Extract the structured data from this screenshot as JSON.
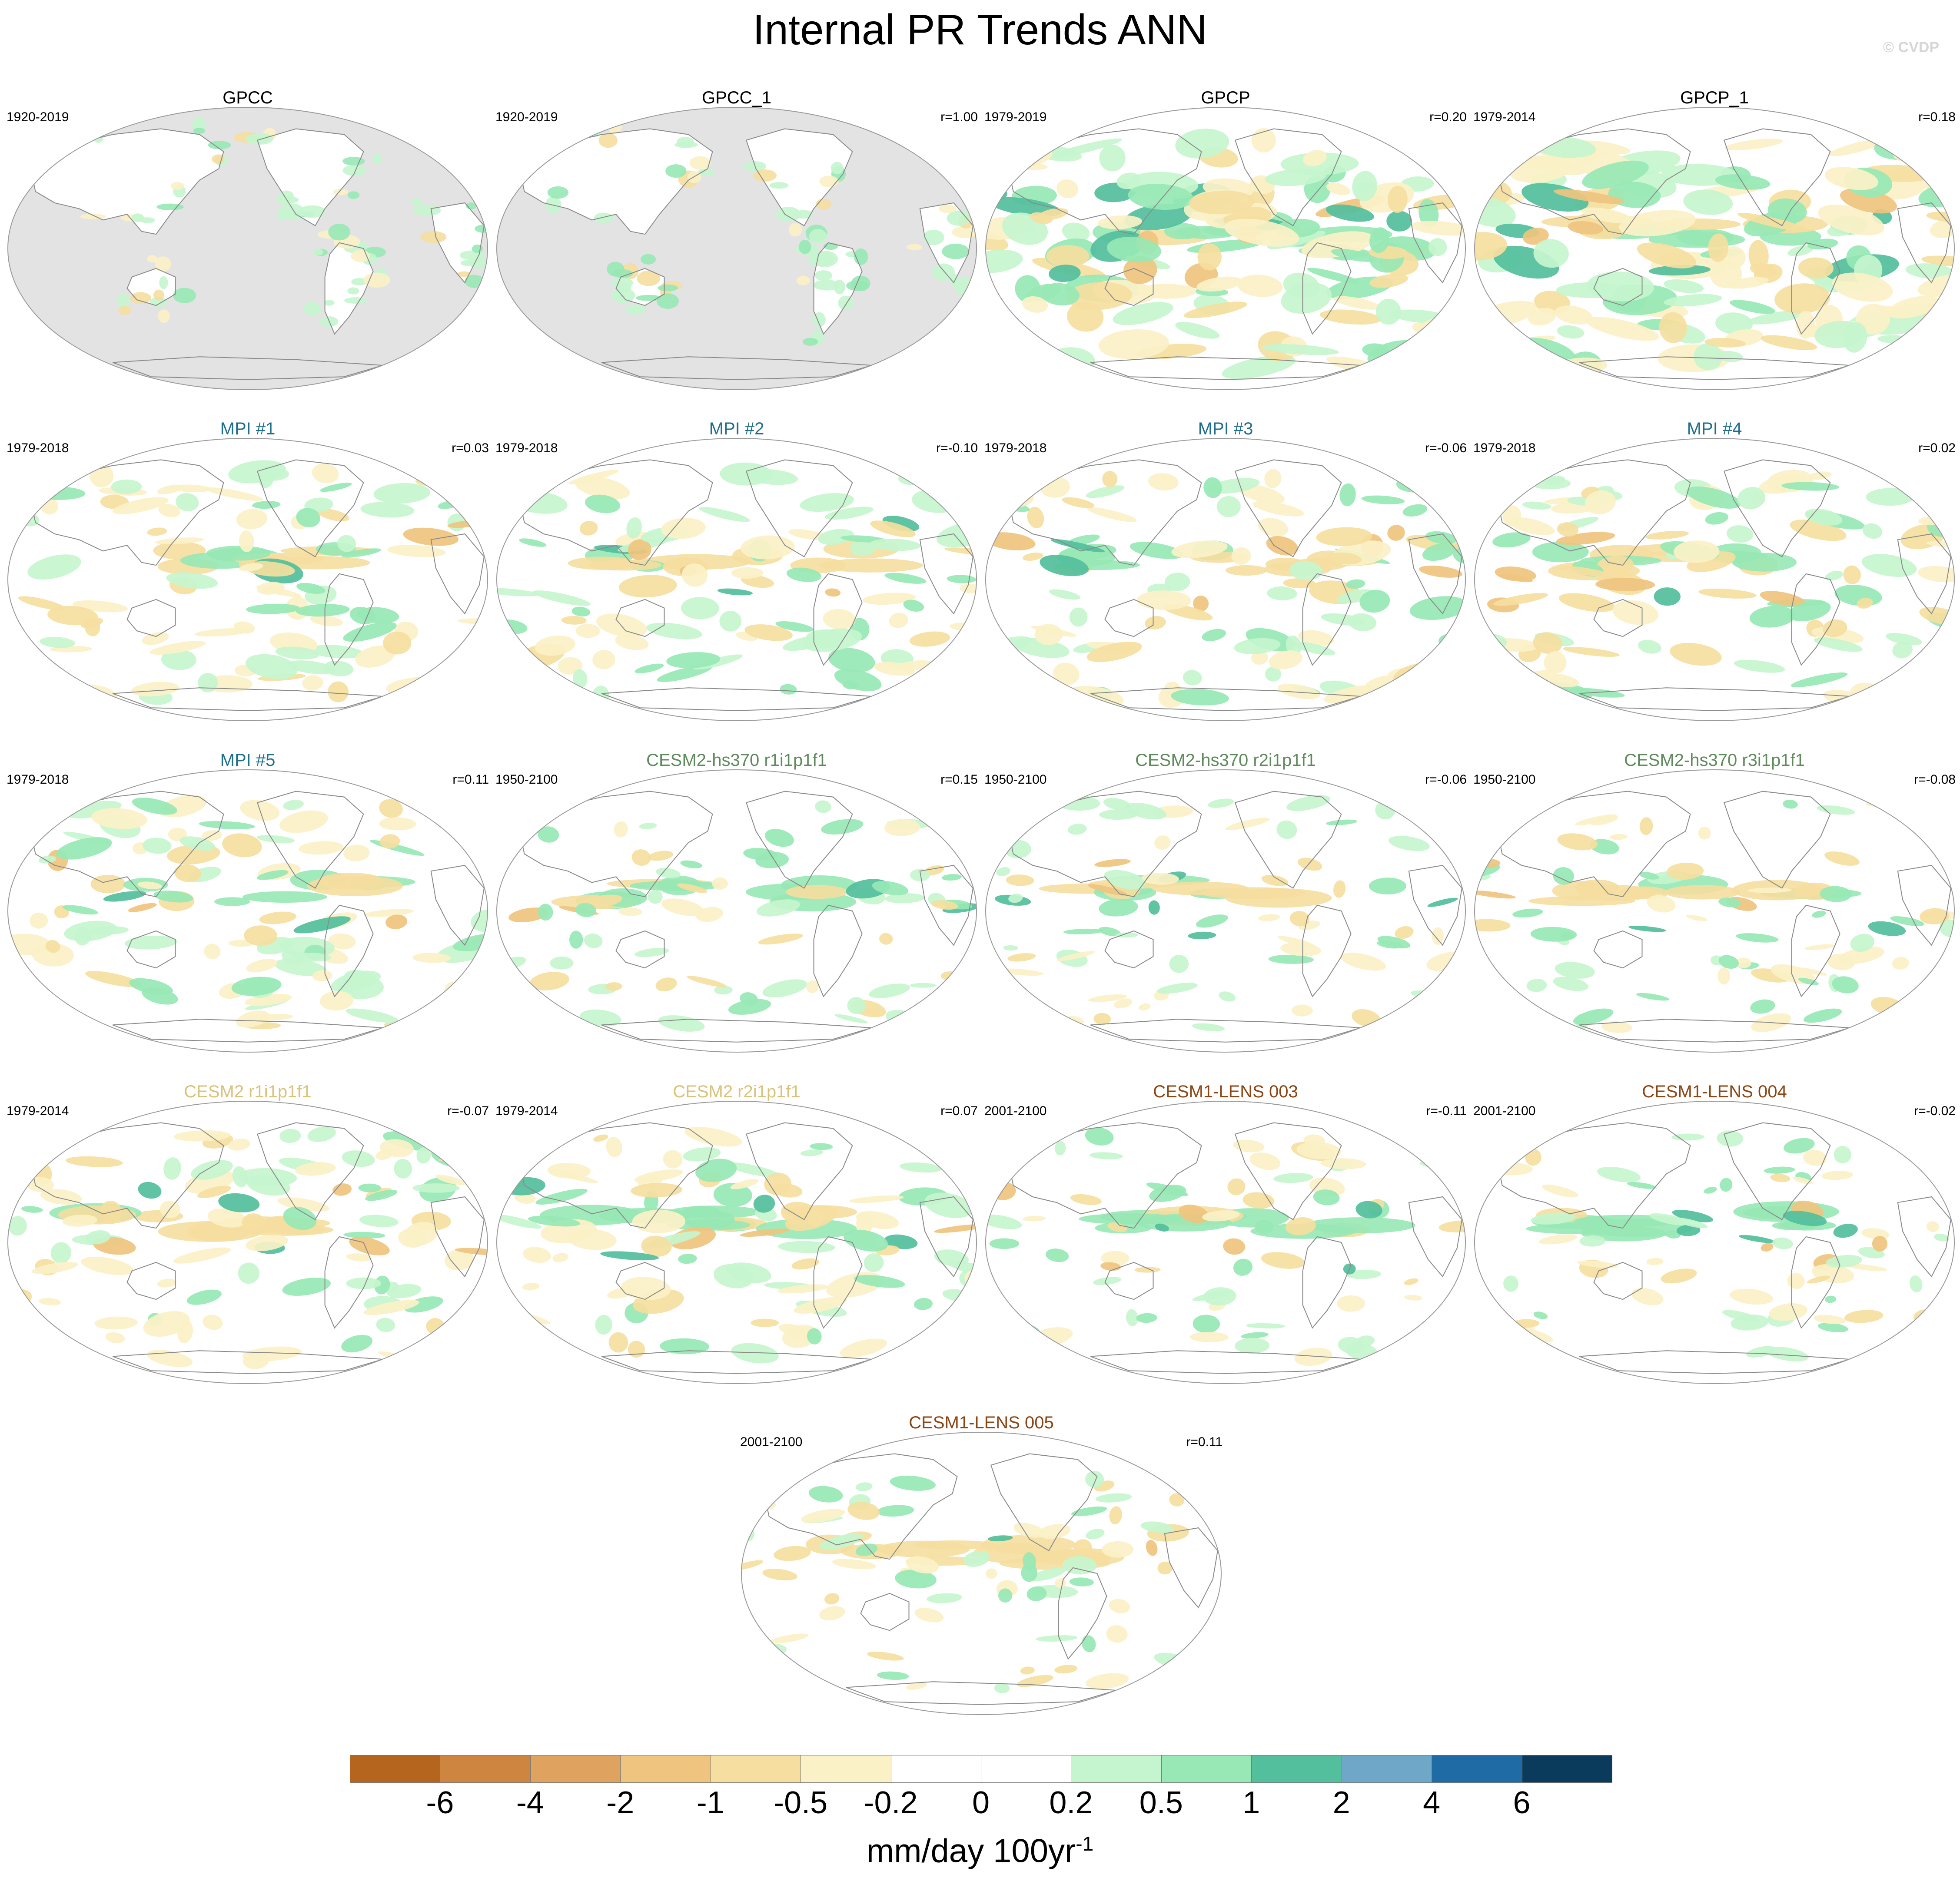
{
  "title": "Internal PR Trends ANN",
  "watermark": "© CVDP",
  "panels": [
    {
      "title": "GPCC",
      "period": "1920-2019",
      "r": "",
      "title_color": "#000000",
      "field": "land-only"
    },
    {
      "title": "GPCC_1",
      "period": "1920-2019",
      "r": "r=1.00",
      "title_color": "#000000",
      "field": "land-only"
    },
    {
      "title": "GPCP",
      "period": "1979-2019",
      "r": "r=0.20",
      "title_color": "#000000",
      "field": "strong"
    },
    {
      "title": "GPCP_1",
      "period": "1979-2014",
      "r": "r=0.18",
      "title_color": "#000000",
      "field": "strong"
    },
    {
      "title": "MPI #1",
      "period": "1979-2018",
      "r": "r=0.03",
      "title_color": "#1f6e8c",
      "field": "moderate"
    },
    {
      "title": "MPI #2",
      "period": "1979-2018",
      "r": "r=-0.10",
      "title_color": "#1f6e8c",
      "field": "moderate"
    },
    {
      "title": "MPI #3",
      "period": "1979-2018",
      "r": "r=-0.06",
      "title_color": "#1f6e8c",
      "field": "moderate"
    },
    {
      "title": "MPI #4",
      "period": "1979-2018",
      "r": "r=0.02",
      "title_color": "#1f6e8c",
      "field": "moderate"
    },
    {
      "title": "MPI #5",
      "period": "1979-2018",
      "r": "r=0.11",
      "title_color": "#1f6e8c",
      "field": "moderate"
    },
    {
      "title": "CESM2-hs370 r1i1p1f1",
      "period": "1950-2100",
      "r": "r=0.15",
      "title_color": "#5f8a5c",
      "field": "weak"
    },
    {
      "title": "CESM2-hs370 r2i1p1f1",
      "period": "1950-2100",
      "r": "r=-0.06",
      "title_color": "#5f8a5c",
      "field": "weak"
    },
    {
      "title": "CESM2-hs370 r3i1p1f1",
      "period": "1950-2100",
      "r": "r=-0.08",
      "title_color": "#5f8a5c",
      "field": "weak"
    },
    {
      "title": "CESM2 r1i1p1f1",
      "period": "1979-2014",
      "r": "r=-0.07",
      "title_color": "#d9c27a",
      "field": "moderate"
    },
    {
      "title": "CESM2 r2i1p1f1",
      "period": "1979-2014",
      "r": "r=0.07",
      "title_color": "#d9c27a",
      "field": "moderate"
    },
    {
      "title": "CESM1-LENS 003",
      "period": "2001-2100",
      "r": "r=-0.11",
      "title_color": "#8b4513",
      "field": "weak"
    },
    {
      "title": "CESM1-LENS 004",
      "period": "2001-2100",
      "r": "r=-0.02",
      "title_color": "#8b4513",
      "field": "weak"
    },
    {
      "title": "CESM1-LENS 005",
      "period": "2001-2100",
      "r": "r=0.11",
      "title_color": "#8b4513",
      "field": "weak"
    }
  ],
  "colorbar": {
    "colors": [
      "#b5651d",
      "#cd853f",
      "#dfa35f",
      "#efc47f",
      "#f5de9f",
      "#fbf1c7",
      "#ffffff",
      "#ffffff",
      "#c5f5ce",
      "#97e8b5",
      "#53bf9c",
      "#6ea7c7",
      "#1f6ba6",
      "#0a3a5c"
    ],
    "labels": [
      "-6",
      "-4",
      "-2",
      "-1",
      "-0.5",
      "-0.2",
      "0",
      "0.2",
      "0.5",
      "1",
      "2",
      "4",
      "6"
    ],
    "units": "mm/day 100yr",
    "units_exponent": "-1"
  }
}
